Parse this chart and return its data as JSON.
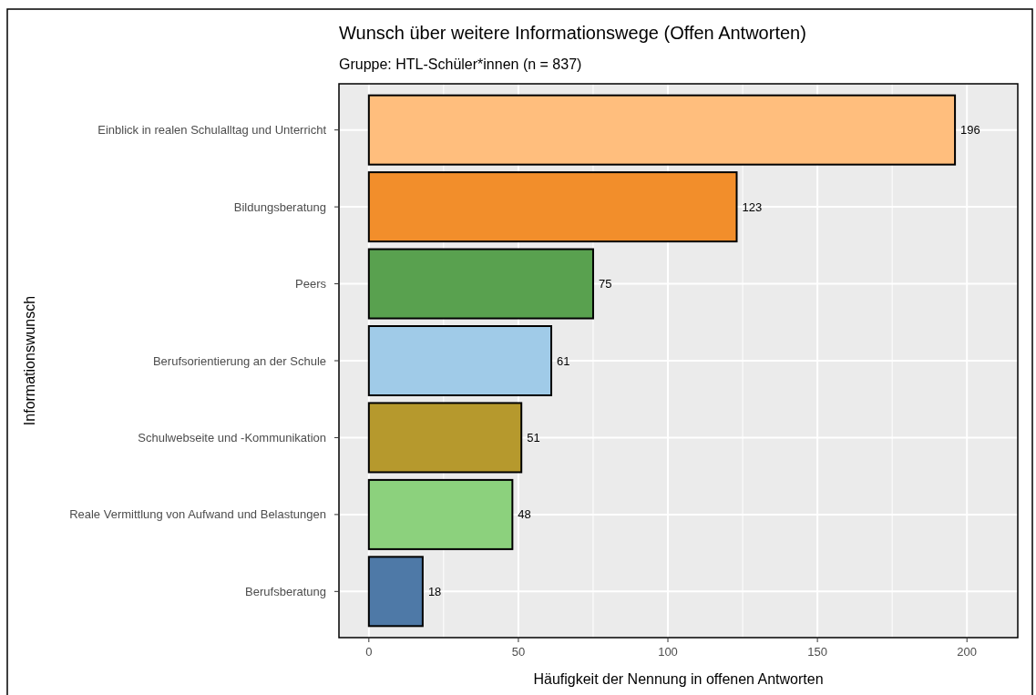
{
  "chart_data": {
    "type": "bar",
    "orientation": "horizontal",
    "title": "Wunsch über weitere Informationswege (Offen Antworten)",
    "subtitle": "Gruppe: HTL-Schüler*innen (n = 837)",
    "xlabel": "Häufigkeit der Nennung in offenen Antworten",
    "ylabel": "Informationswunsch",
    "categories": [
      "Einblick in realen Schulalltag und Unterricht",
      "Bildungsberatung",
      "Peers",
      "Berufsorientierung an der Schule",
      "Schulwebseite und -Kommunikation",
      "Reale Vermittlung von Aufwand und Belastungen",
      "Berufsberatung"
    ],
    "values": [
      196,
      123,
      75,
      61,
      51,
      48,
      18
    ],
    "colors": [
      "#ffbe7d",
      "#f28e2b",
      "#59a14f",
      "#a0cbe8",
      "#b6992d",
      "#8cd17d",
      "#4e79a7"
    ],
    "xlim": [
      -10,
      217
    ],
    "xticks": [
      0,
      50,
      100,
      150,
      200
    ],
    "grid": true,
    "data_labels": true
  }
}
